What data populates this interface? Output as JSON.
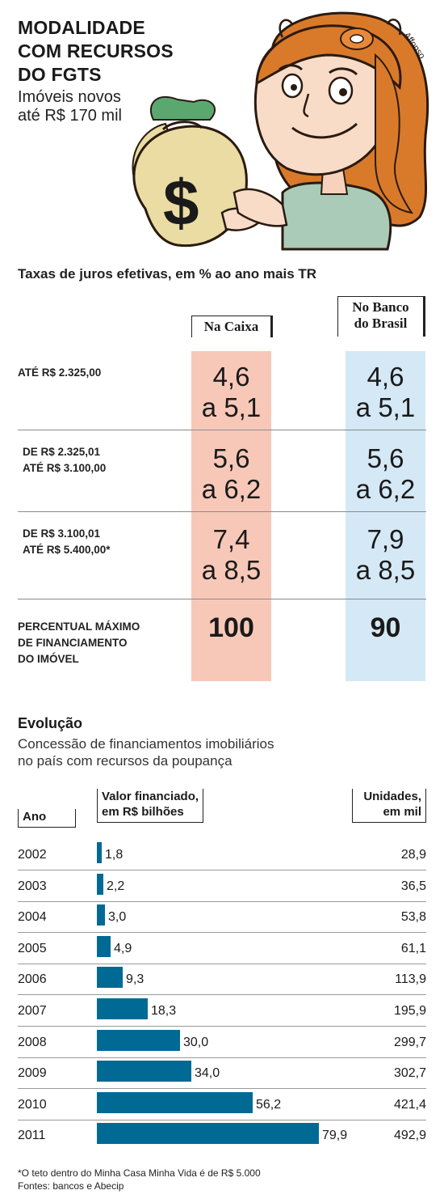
{
  "header": {
    "title_lines": [
      "MODALIDADE",
      "COM RECURSOS",
      "DO FGTS"
    ],
    "subtitle_lines": [
      "Imóveis novos",
      "até R$ 170 mil"
    ],
    "illustration_signature": "Affonso"
  },
  "rates_table": {
    "title": "Taxas de juros efetivas, em % ao ano mais TR",
    "col_caixa": "Na Caixa",
    "col_bb_lines": [
      "No Banco",
      "do Brasil"
    ],
    "rows": [
      {
        "label_lines": [
          "ATÉ R$ 2.325,00"
        ],
        "caixa": [
          "4,6",
          "a 5,1"
        ],
        "bb": [
          "4,6",
          "a 5,1"
        ]
      },
      {
        "label_lines": [
          "DE R$ 2.325,01",
          "ATÉ R$ 3.100,00"
        ],
        "caixa": [
          "5,6",
          "a 6,2"
        ],
        "bb": [
          "5,6",
          "a 6,2"
        ]
      },
      {
        "label_lines": [
          "DE R$ 3.100,01",
          "ATÉ R$ 5.400,00*"
        ],
        "caixa": [
          "7,4",
          "a 8,5"
        ],
        "bb": [
          "7,9",
          "a 8,5"
        ]
      }
    ],
    "max_row": {
      "label_lines": [
        "PERCENTUAL MÁXIMO",
        "DE FINANCIAMENTO",
        "DO IMÓVEL"
      ],
      "caixa": "100",
      "bb": "90"
    },
    "colors": {
      "caixa": "#f7c8b8",
      "bb": "#d4e8f5"
    }
  },
  "evolution": {
    "title": "Evolução",
    "subtitle_lines": [
      "Concessão de financiamentos imobiliários",
      "no país com recursos da poupança"
    ],
    "col_ano": "Ano",
    "col_valor_lines": [
      "Valor financiado,",
      "em R$ bilhões"
    ],
    "col_unidades_lines": [
      "Unidades,",
      "em mil"
    ]
  },
  "chart_data": {
    "type": "bar",
    "orientation": "horizontal",
    "categories": [
      "2002",
      "2003",
      "2004",
      "2005",
      "2006",
      "2007",
      "2008",
      "2009",
      "2010",
      "2011"
    ],
    "values": [
      1.8,
      2.2,
      3.0,
      4.9,
      9.3,
      18.3,
      30.0,
      34.0,
      56.2,
      79.9
    ],
    "value_labels": [
      "1,8",
      "2,2",
      "3,0",
      "4,9",
      "9,3",
      "18,3",
      "30,0",
      "34,0",
      "56,2",
      "79,9"
    ],
    "units_labels": [
      "28,9",
      "36,5",
      "53,8",
      "61,1",
      "113,9",
      "195,9",
      "299,7",
      "302,7",
      "421,4",
      "492,9"
    ],
    "bar_color": "#006a94",
    "xlim": [
      0,
      79.9
    ]
  },
  "footnotes": [
    "*O teto dentro do Minha Casa Minha Vida é de R$ 5.000",
    "Fontes: bancos e Abecip"
  ]
}
